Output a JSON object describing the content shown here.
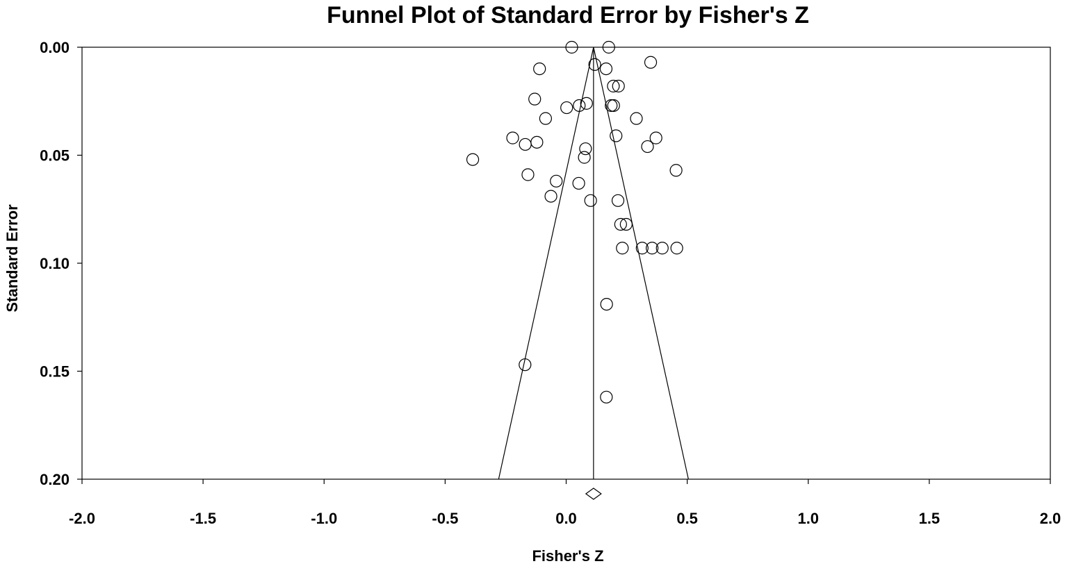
{
  "chart_data": {
    "type": "scatter",
    "title": "Funnel Plot of Standard Error by Fisher's Z",
    "xlabel": "Fisher's Z",
    "ylabel": "Standard Error",
    "xlim": [
      -2.0,
      2.0
    ],
    "ylim": [
      0.0,
      0.2
    ],
    "y_inverted": true,
    "x_ticks": [
      "-2.0",
      "-1.5",
      "-1.0",
      "-0.5",
      "0.0",
      "0.5",
      "1.0",
      "1.5",
      "2.0"
    ],
    "y_ticks": [
      "0.00",
      "0.05",
      "0.10",
      "0.15",
      "0.20"
    ],
    "pooled_estimate": 0.113,
    "funnel_bottom": {
      "se": 0.2,
      "x_left": -0.279,
      "x_right": 0.505
    },
    "points": [
      {
        "x": 0.023,
        "y": 0.0
      },
      {
        "x": 0.176,
        "y": 0.0
      },
      {
        "x": 0.349,
        "y": 0.007
      },
      {
        "x": 0.118,
        "y": 0.008
      },
      {
        "x": -0.11,
        "y": 0.01
      },
      {
        "x": 0.165,
        "y": 0.01
      },
      {
        "x": 0.195,
        "y": 0.018
      },
      {
        "x": 0.216,
        "y": 0.018
      },
      {
        "x": -0.13,
        "y": 0.024
      },
      {
        "x": 0.084,
        "y": 0.026
      },
      {
        "x": 0.054,
        "y": 0.027
      },
      {
        "x": 0.186,
        "y": 0.027
      },
      {
        "x": 0.196,
        "y": 0.027
      },
      {
        "x": 0.002,
        "y": 0.028
      },
      {
        "x": 0.29,
        "y": 0.033
      },
      {
        "x": -0.085,
        "y": 0.033
      },
      {
        "x": 0.206,
        "y": 0.041
      },
      {
        "x": -0.221,
        "y": 0.042
      },
      {
        "x": 0.371,
        "y": 0.042
      },
      {
        "x": -0.121,
        "y": 0.044
      },
      {
        "x": -0.169,
        "y": 0.045
      },
      {
        "x": 0.336,
        "y": 0.046
      },
      {
        "x": 0.08,
        "y": 0.047
      },
      {
        "x": 0.075,
        "y": 0.051
      },
      {
        "x": -0.386,
        "y": 0.052
      },
      {
        "x": 0.454,
        "y": 0.057
      },
      {
        "x": -0.158,
        "y": 0.059
      },
      {
        "x": -0.041,
        "y": 0.062
      },
      {
        "x": 0.052,
        "y": 0.063
      },
      {
        "x": -0.063,
        "y": 0.069
      },
      {
        "x": 0.101,
        "y": 0.071
      },
      {
        "x": 0.214,
        "y": 0.071
      },
      {
        "x": 0.225,
        "y": 0.082
      },
      {
        "x": 0.248,
        "y": 0.082
      },
      {
        "x": 0.232,
        "y": 0.093
      },
      {
        "x": 0.314,
        "y": 0.093
      },
      {
        "x": 0.355,
        "y": 0.093
      },
      {
        "x": 0.397,
        "y": 0.093
      },
      {
        "x": 0.457,
        "y": 0.093
      },
      {
        "x": 0.167,
        "y": 0.119
      },
      {
        "x": -0.17,
        "y": 0.147
      },
      {
        "x": 0.166,
        "y": 0.162
      }
    ]
  }
}
